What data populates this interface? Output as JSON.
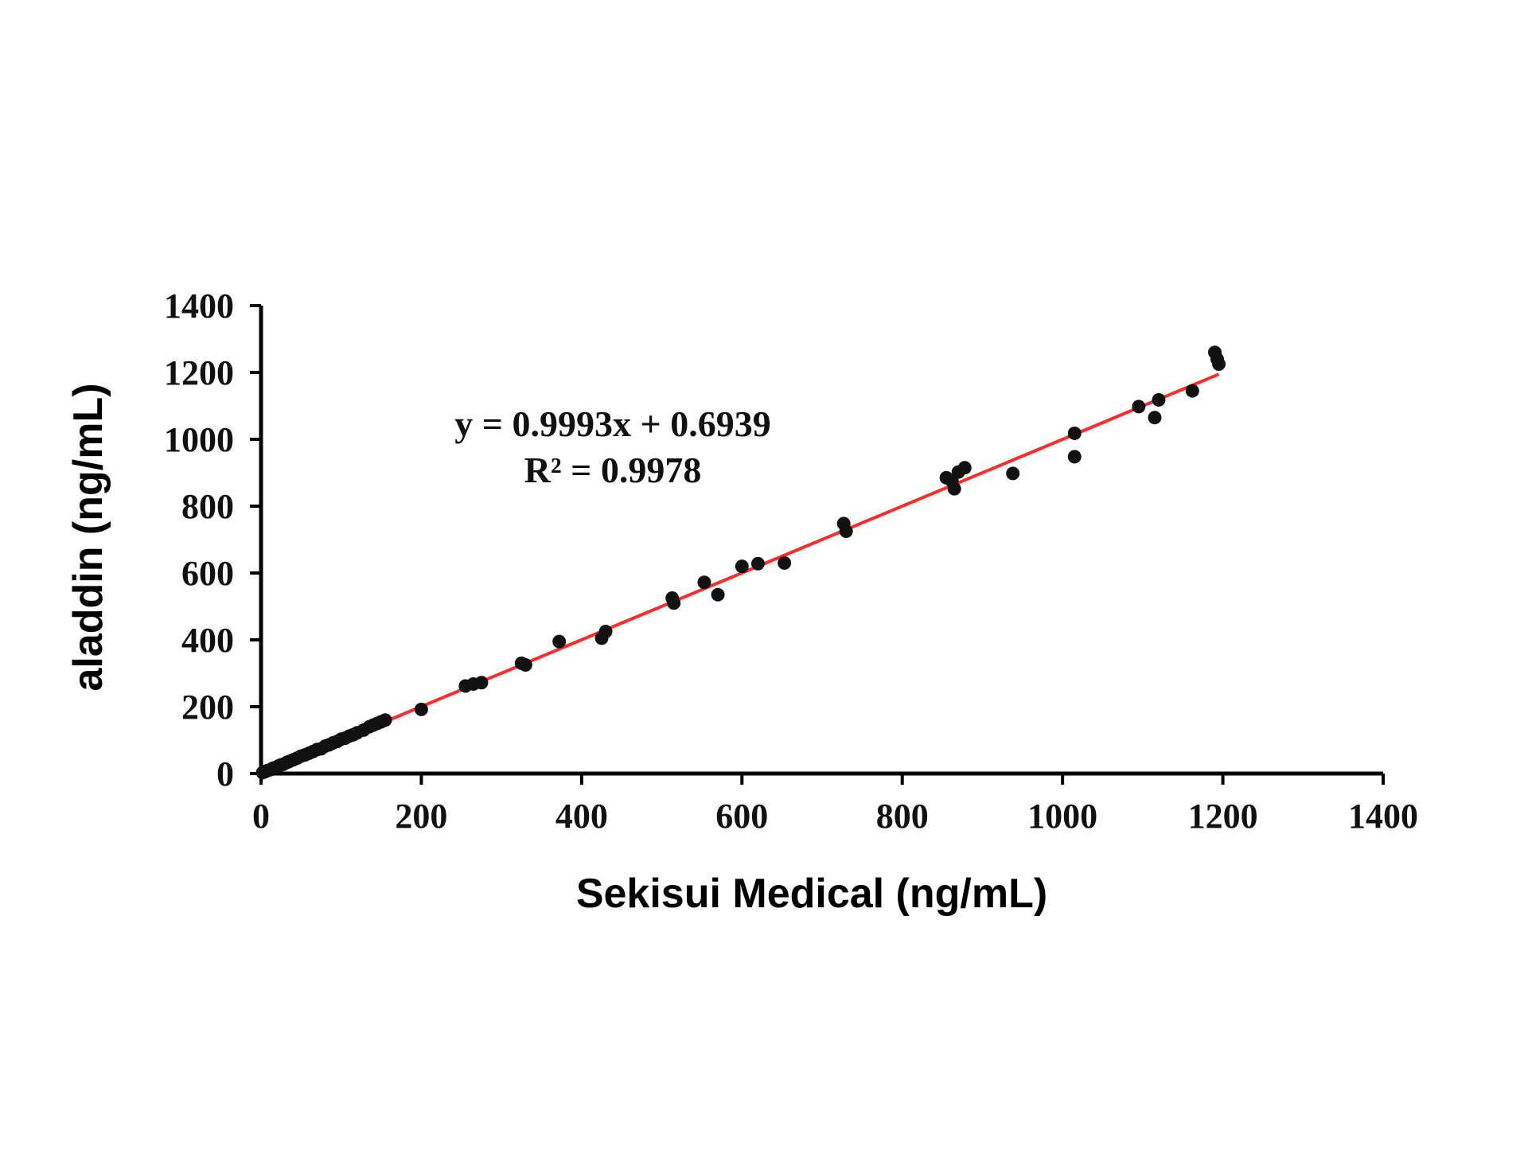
{
  "chart_data": {
    "type": "scatter",
    "xlabel": "Sekisui Medical (ng/mL)",
    "ylabel": "aladdin (ng/mL)",
    "xlim": [
      0,
      1400
    ],
    "ylim": [
      0,
      1400
    ],
    "xticks": [
      "0",
      "200",
      "400",
      "600",
      "800",
      "1000",
      "1200",
      "1400"
    ],
    "yticks": [
      "0",
      "200",
      "400",
      "600",
      "800",
      "1000",
      "1200",
      "1400"
    ],
    "grid": false,
    "annotations": {
      "equation": "y = 0.9993x + 0.6939",
      "r_squared": "R² = 0.9978"
    },
    "trendline": {
      "slope": 0.9993,
      "intercept": 0.6939,
      "x_range": [
        0,
        1195
      ],
      "color": "#ff2a2a"
    },
    "point_color": "#111111",
    "points": [
      [
        2,
        3
      ],
      [
        5,
        6
      ],
      [
        8,
        9
      ],
      [
        12,
        12
      ],
      [
        15,
        16
      ],
      [
        18,
        18
      ],
      [
        22,
        23
      ],
      [
        25,
        26
      ],
      [
        28,
        28
      ],
      [
        32,
        33
      ],
      [
        35,
        36
      ],
      [
        40,
        41
      ],
      [
        45,
        46
      ],
      [
        50,
        52
      ],
      [
        55,
        56
      ],
      [
        60,
        61
      ],
      [
        65,
        66
      ],
      [
        70,
        72
      ],
      [
        75,
        74
      ],
      [
        80,
        82
      ],
      [
        85,
        86
      ],
      [
        90,
        92
      ],
      [
        95,
        96
      ],
      [
        100,
        103
      ],
      [
        105,
        106
      ],
      [
        110,
        112
      ],
      [
        115,
        116
      ],
      [
        120,
        122
      ],
      [
        128,
        130
      ],
      [
        135,
        140
      ],
      [
        140,
        145
      ],
      [
        145,
        150
      ],
      [
        150,
        155
      ],
      [
        155,
        160
      ],
      [
        200,
        192
      ],
      [
        255,
        262
      ],
      [
        265,
        268
      ],
      [
        275,
        272
      ],
      [
        325,
        330
      ],
      [
        330,
        325
      ],
      [
        372,
        395
      ],
      [
        425,
        405
      ],
      [
        430,
        425
      ],
      [
        513,
        525
      ],
      [
        515,
        510
      ],
      [
        553,
        572
      ],
      [
        570,
        535
      ],
      [
        600,
        620
      ],
      [
        620,
        628
      ],
      [
        653,
        630
      ],
      [
        727,
        748
      ],
      [
        730,
        725
      ],
      [
        855,
        885
      ],
      [
        862,
        875
      ],
      [
        865,
        852
      ],
      [
        870,
        902
      ],
      [
        878,
        915
      ],
      [
        938,
        898
      ],
      [
        1015,
        1018
      ],
      [
        1015,
        948
      ],
      [
        1095,
        1098
      ],
      [
        1115,
        1065
      ],
      [
        1120,
        1118
      ],
      [
        1162,
        1145
      ],
      [
        1190,
        1260
      ],
      [
        1193,
        1240
      ],
      [
        1195,
        1225
      ]
    ]
  }
}
